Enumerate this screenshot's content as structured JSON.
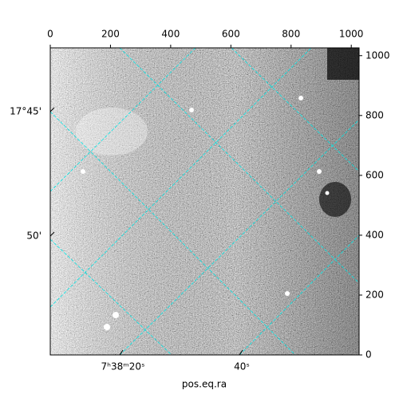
{
  "chart_data": {
    "type": "image",
    "xlabel": "pos.eq.ra",
    "xlim": [
      0,
      1026
    ],
    "xticks": [
      0,
      200,
      400,
      600,
      800,
      1000
    ],
    "ylim": [
      0,
      1026
    ],
    "yticks": [
      0,
      200,
      400,
      600,
      800,
      1000
    ],
    "ra_labels": [
      "7ʰ38ᵐ20ˢ",
      "40ˢ"
    ],
    "dec_labels": [
      "17°45'",
      "50'"
    ],
    "grid_color": "#00e5e5"
  }
}
